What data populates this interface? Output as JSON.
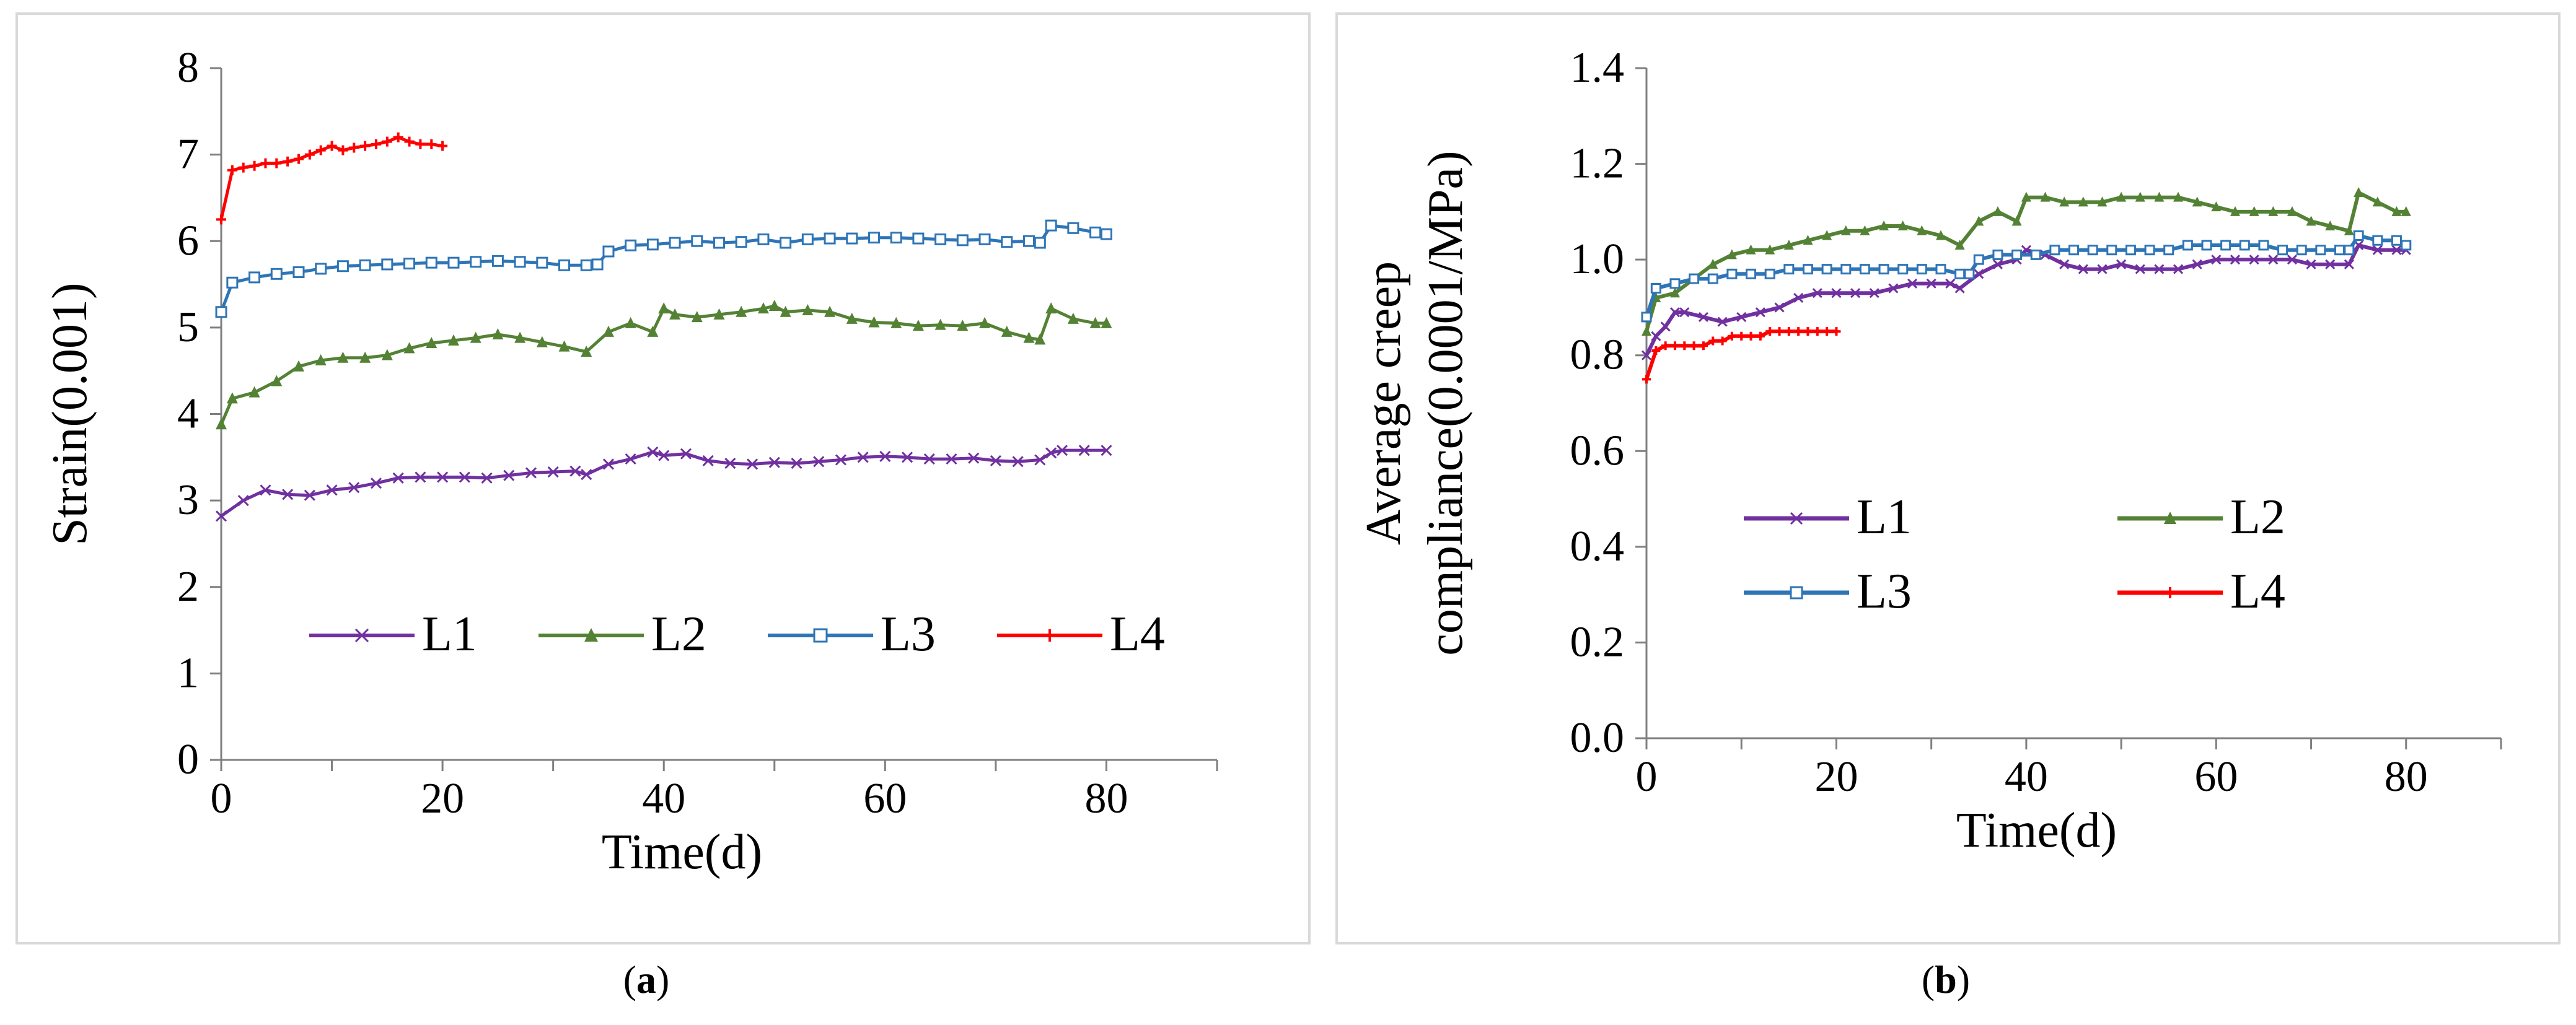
{
  "captions": {
    "a": "a",
    "b": "b"
  },
  "chart_data": [
    {
      "id": "a",
      "type": "line",
      "ylabel": "Strain(0.001)",
      "xlabel": "Time(d)",
      "xlim": [
        0,
        90
      ],
      "ylim": [
        0,
        8
      ],
      "xticks": [
        "0",
        "20",
        "40",
        "60",
        "80"
      ],
      "yticks": [
        "0",
        "1",
        "2",
        "3",
        "4",
        "5",
        "6",
        "7",
        "8"
      ],
      "legend": "bottom",
      "series": [
        {
          "name": "L1",
          "color": "#7030a0",
          "marker": "x",
          "x": [
            0,
            2,
            4,
            6,
            8,
            10,
            12,
            14,
            16,
            18,
            20,
            22,
            24,
            26,
            28,
            30,
            32,
            33,
            35,
            37,
            39,
            40,
            42,
            44,
            46,
            48,
            50,
            52,
            54,
            56,
            58,
            60,
            62,
            64,
            66,
            68,
            70,
            72,
            74,
            75,
            76,
            78,
            80
          ],
          "y": [
            2.82,
            3.0,
            3.12,
            3.07,
            3.06,
            3.12,
            3.15,
            3.2,
            3.26,
            3.27,
            3.27,
            3.27,
            3.26,
            3.29,
            3.32,
            3.33,
            3.34,
            3.3,
            3.42,
            3.48,
            3.56,
            3.52,
            3.54,
            3.46,
            3.43,
            3.42,
            3.44,
            3.43,
            3.45,
            3.47,
            3.5,
            3.51,
            3.5,
            3.48,
            3.48,
            3.49,
            3.46,
            3.45,
            3.47,
            3.55,
            3.58,
            3.58,
            3.58
          ]
        },
        {
          "name": "L2",
          "color": "#548235",
          "marker": "triangle",
          "x": [
            0,
            1,
            3,
            5,
            7,
            9,
            11,
            13,
            15,
            17,
            19,
            21,
            23,
            25,
            27,
            29,
            31,
            33,
            35,
            37,
            39,
            40,
            41,
            43,
            45,
            47,
            49,
            50,
            51,
            53,
            55,
            57,
            59,
            61,
            63,
            65,
            67,
            69,
            71,
            73,
            74,
            75,
            77,
            79,
            80
          ],
          "y": [
            3.88,
            4.18,
            4.25,
            4.38,
            4.55,
            4.62,
            4.65,
            4.65,
            4.68,
            4.76,
            4.82,
            4.85,
            4.88,
            4.92,
            4.88,
            4.83,
            4.78,
            4.72,
            4.95,
            5.05,
            4.95,
            5.22,
            5.15,
            5.12,
            5.15,
            5.18,
            5.22,
            5.25,
            5.18,
            5.2,
            5.18,
            5.1,
            5.06,
            5.05,
            5.02,
            5.03,
            5.02,
            5.05,
            4.95,
            4.88,
            4.86,
            5.22,
            5.1,
            5.05,
            5.05
          ]
        },
        {
          "name": "L3",
          "color": "#2e75b6",
          "marker": "square",
          "x": [
            0,
            1,
            3,
            5,
            7,
            9,
            11,
            13,
            15,
            17,
            19,
            21,
            23,
            25,
            27,
            29,
            31,
            33,
            34,
            35,
            37,
            39,
            41,
            43,
            45,
            47,
            49,
            51,
            53,
            55,
            57,
            59,
            61,
            63,
            65,
            67,
            69,
            71,
            73,
            74,
            75,
            77,
            79,
            80
          ],
          "y": [
            5.18,
            5.52,
            5.58,
            5.62,
            5.64,
            5.68,
            5.71,
            5.72,
            5.73,
            5.74,
            5.75,
            5.75,
            5.76,
            5.77,
            5.76,
            5.75,
            5.72,
            5.72,
            5.73,
            5.88,
            5.95,
            5.96,
            5.98,
            6.0,
            5.98,
            5.99,
            6.02,
            5.98,
            6.02,
            6.03,
            6.03,
            6.04,
            6.04,
            6.03,
            6.02,
            6.01,
            6.02,
            5.99,
            6.0,
            5.98,
            6.18,
            6.15,
            6.1,
            6.08
          ]
        },
        {
          "name": "L4",
          "color": "#ff0000",
          "marker": "plus",
          "x": [
            0,
            1,
            2,
            3,
            4,
            5,
            6,
            7,
            8,
            9,
            10,
            11,
            12,
            13,
            14,
            15,
            16,
            17,
            18,
            19,
            20
          ],
          "y": [
            6.25,
            6.82,
            6.85,
            6.87,
            6.9,
            6.9,
            6.92,
            6.95,
            7.0,
            7.05,
            7.1,
            7.05,
            7.08,
            7.1,
            7.12,
            7.15,
            7.2,
            7.15,
            7.12,
            7.12,
            7.1
          ]
        }
      ]
    },
    {
      "id": "b",
      "type": "line",
      "ylabel": "Average creep compliance(0.0001/MPa)",
      "ylabel_lines": [
        "Average creep",
        "compliance(0.0001/MPa)"
      ],
      "xlabel": "Time(d)",
      "xlim": [
        0,
        90
      ],
      "ylim": [
        0,
        1.4
      ],
      "xticks": [
        "0",
        "20",
        "40",
        "60",
        "80"
      ],
      "yticks": [
        "0.0",
        "0.2",
        "0.4",
        "0.6",
        "0.8",
        "1.0",
        "1.2",
        "1.4"
      ],
      "legend": "center",
      "series": [
        {
          "name": "L1",
          "color": "#7030a0",
          "marker": "x",
          "x": [
            0,
            1,
            2,
            3,
            4,
            6,
            8,
            10,
            12,
            14,
            16,
            18,
            20,
            22,
            24,
            26,
            28,
            30,
            32,
            33,
            35,
            37,
            39,
            40,
            42,
            44,
            46,
            48,
            50,
            52,
            54,
            56,
            58,
            60,
            62,
            64,
            66,
            68,
            70,
            72,
            74,
            75,
            77,
            79,
            80
          ],
          "y": [
            0.8,
            0.84,
            0.86,
            0.89,
            0.89,
            0.88,
            0.87,
            0.88,
            0.89,
            0.9,
            0.92,
            0.93,
            0.93,
            0.93,
            0.93,
            0.94,
            0.95,
            0.95,
            0.95,
            0.94,
            0.97,
            0.99,
            1.0,
            1.02,
            1.01,
            0.99,
            0.98,
            0.98,
            0.99,
            0.98,
            0.98,
            0.98,
            0.99,
            1.0,
            1.0,
            1.0,
            1.0,
            1.0,
            0.99,
            0.99,
            0.99,
            1.03,
            1.02,
            1.02,
            1.02
          ]
        },
        {
          "name": "L2",
          "color": "#548235",
          "marker": "triangle",
          "x": [
            0,
            1,
            3,
            5,
            7,
            9,
            11,
            13,
            15,
            17,
            19,
            21,
            23,
            25,
            27,
            29,
            31,
            33,
            35,
            37,
            39,
            40,
            42,
            44,
            46,
            48,
            50,
            52,
            54,
            56,
            58,
            60,
            62,
            64,
            66,
            68,
            70,
            72,
            74,
            75,
            77,
            79,
            80
          ],
          "y": [
            0.85,
            0.92,
            0.93,
            0.96,
            0.99,
            1.01,
            1.02,
            1.02,
            1.03,
            1.04,
            1.05,
            1.06,
            1.06,
            1.07,
            1.07,
            1.06,
            1.05,
            1.03,
            1.08,
            1.1,
            1.08,
            1.13,
            1.13,
            1.12,
            1.12,
            1.12,
            1.13,
            1.13,
            1.13,
            1.13,
            1.12,
            1.11,
            1.1,
            1.1,
            1.1,
            1.1,
            1.08,
            1.07,
            1.06,
            1.14,
            1.12,
            1.1,
            1.1
          ]
        },
        {
          "name": "L3",
          "color": "#2e75b6",
          "marker": "square",
          "x": [
            0,
            1,
            3,
            5,
            7,
            9,
            11,
            13,
            15,
            17,
            19,
            21,
            23,
            25,
            27,
            29,
            31,
            33,
            34,
            35,
            37,
            39,
            41,
            43,
            45,
            47,
            49,
            51,
            53,
            55,
            57,
            59,
            61,
            63,
            65,
            67,
            69,
            71,
            73,
            74,
            75,
            77,
            79,
            80
          ],
          "y": [
            0.88,
            0.94,
            0.95,
            0.96,
            0.96,
            0.97,
            0.97,
            0.97,
            0.98,
            0.98,
            0.98,
            0.98,
            0.98,
            0.98,
            0.98,
            0.98,
            0.98,
            0.97,
            0.97,
            1.0,
            1.01,
            1.01,
            1.01,
            1.02,
            1.02,
            1.02,
            1.02,
            1.02,
            1.02,
            1.02,
            1.03,
            1.03,
            1.03,
            1.03,
            1.03,
            1.02,
            1.02,
            1.02,
            1.02,
            1.02,
            1.05,
            1.04,
            1.04,
            1.03
          ]
        },
        {
          "name": "L4",
          "color": "#ff0000",
          "marker": "plus",
          "x": [
            0,
            1,
            2,
            3,
            4,
            5,
            6,
            7,
            8,
            9,
            10,
            11,
            12,
            13,
            14,
            15,
            16,
            17,
            18,
            19,
            20
          ],
          "y": [
            0.75,
            0.81,
            0.82,
            0.82,
            0.82,
            0.82,
            0.82,
            0.83,
            0.83,
            0.84,
            0.84,
            0.84,
            0.84,
            0.85,
            0.85,
            0.85,
            0.85,
            0.85,
            0.85,
            0.85,
            0.85
          ]
        }
      ]
    }
  ]
}
